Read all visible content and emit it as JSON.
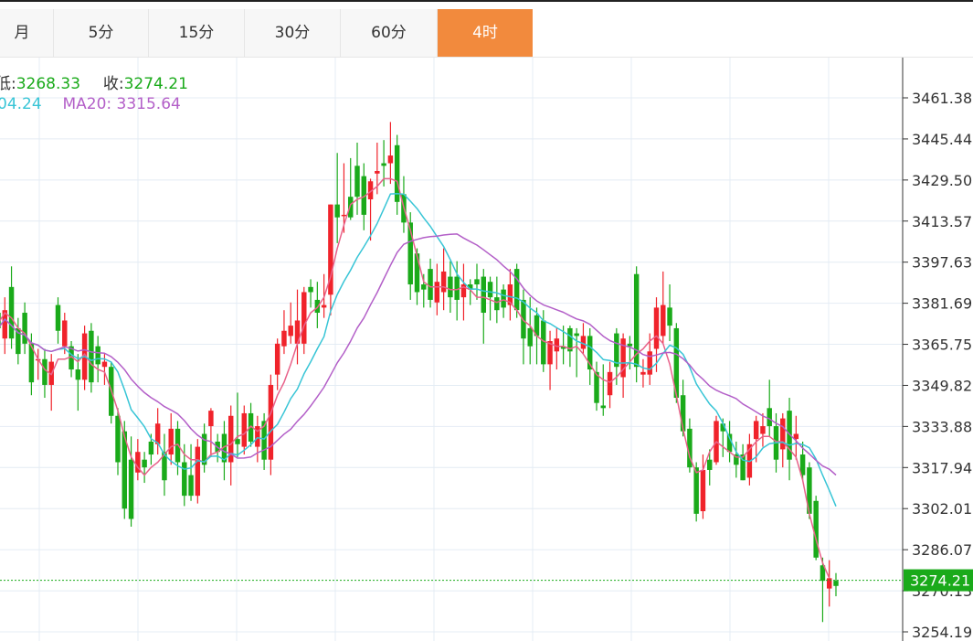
{
  "tabs": [
    {
      "label": "月"
    },
    {
      "label": "5分"
    },
    {
      "label": "15分"
    },
    {
      "label": "30分"
    },
    {
      "label": "60分"
    },
    {
      "label": "4时",
      "active": true
    }
  ],
  "info": {
    "low_label": "低:",
    "low_value": "3268.33",
    "close_label": "收:",
    "close_value": "3274.21",
    "ma10_value": "04.24",
    "ma20_label": "MA20:",
    "ma20_value": "3315.64"
  },
  "colors": {
    "up": "#f0232b",
    "down": "#1aaa1a",
    "ma5": "#e8628a",
    "ma10": "#38c5d6",
    "ma20": "#b35fc8",
    "accent": "#f28a3d",
    "price_tag": "#1aaa1a"
  },
  "chart_data": {
    "type": "candlestick",
    "y_ticks": [
      3461.38,
      3445.44,
      3429.5,
      3413.57,
      3397.63,
      3381.69,
      3365.75,
      3349.82,
      3333.88,
      3317.94,
      3302.01,
      3286.07,
      3270.13,
      3254.19
    ],
    "y_tick_labels": [
      "3461.38",
      "3445.44",
      "3429.50",
      "3413.57",
      "3397.63",
      "3381.69",
      "3365.75",
      "3349.82",
      "3333.88",
      "3317.94",
      "3302.01",
      "3286.07",
      "3270.13",
      "3254.19"
    ],
    "ylim": [
      3252,
      3475
    ],
    "last_price": 3274.21,
    "last_price_label": "3274.21",
    "candles": [
      [
        3378,
        3372,
        3381,
        3368
      ],
      [
        3368,
        3379,
        3384,
        3362
      ],
      [
        3388,
        3368,
        3396,
        3364
      ],
      [
        3372,
        3362,
        3376,
        3358
      ],
      [
        3378,
        3366,
        3382,
        3362
      ],
      [
        3366,
        3351,
        3370,
        3346
      ],
      [
        3360,
        3360,
        3364,
        3352
      ],
      [
        3360,
        3350,
        3364,
        3345
      ],
      [
        3350,
        3359,
        3362,
        3340
      ],
      [
        3381,
        3371,
        3384,
        3366
      ],
      [
        3365,
        3375,
        3378,
        3362
      ],
      [
        3365,
        3356,
        3367,
        3353
      ],
      [
        3356,
        3352,
        3362,
        3340
      ],
      [
        3352,
        3370,
        3373,
        3348
      ],
      [
        3371,
        3351,
        3374,
        3347
      ],
      [
        3365,
        3358,
        3369,
        3351
      ],
      [
        3357,
        3359,
        3362,
        3350
      ],
      [
        3357,
        3338,
        3359,
        3335
      ],
      [
        3338,
        3320,
        3341,
        3315
      ],
      [
        3332,
        3302,
        3336,
        3298
      ],
      [
        3321,
        3298,
        3330,
        3295
      ],
      [
        3316,
        3324,
        3329,
        3313
      ],
      [
        3321,
        3318,
        3324,
        3312
      ],
      [
        3328,
        3323,
        3331,
        3319
      ],
      [
        3327,
        3335,
        3341,
        3323
      ],
      [
        3324,
        3313,
        3331,
        3307
      ],
      [
        3323,
        3333,
        3339,
        3319
      ],
      [
        3333,
        3320,
        3336,
        3315
      ],
      [
        3320,
        3307,
        3327,
        3303
      ],
      [
        3315,
        3307,
        3327,
        3305
      ],
      [
        3307,
        3326,
        3329,
        3304
      ],
      [
        3331,
        3319,
        3335,
        3316
      ],
      [
        3334,
        3340,
        3341,
        3322
      ],
      [
        3328,
        3324,
        3331,
        3320
      ],
      [
        3331,
        3320,
        3336,
        3313
      ],
      [
        3320,
        3338,
        3342,
        3311
      ],
      [
        3329,
        3327,
        3347,
        3322
      ],
      [
        3326,
        3339,
        3342,
        3323
      ],
      [
        3339,
        3328,
        3343,
        3326
      ],
      [
        3326,
        3334,
        3338,
        3320
      ],
      [
        3336,
        3321,
        3339,
        3317
      ],
      [
        3321,
        3350,
        3354,
        3315
      ],
      [
        3354,
        3366,
        3368,
        3348
      ],
      [
        3365,
        3371,
        3379,
        3362
      ],
      [
        3369,
        3373,
        3382,
        3366
      ],
      [
        3366,
        3375,
        3387,
        3358
      ],
      [
        3366,
        3386,
        3388,
        3362
      ],
      [
        3388,
        3386,
        3391,
        3380
      ],
      [
        3383,
        3378,
        3390,
        3372
      ],
      [
        3380,
        3381,
        3393,
        3376
      ],
      [
        3385,
        3420,
        3420,
        3377
      ],
      [
        3420,
        3415,
        3440,
        3405
      ],
      [
        3416,
        3416,
        3436,
        3409
      ],
      [
        3423,
        3415,
        3438,
        3414
      ],
      [
        3435,
        3423,
        3444,
        3416
      ],
      [
        3431,
        3416,
        3436,
        3410
      ],
      [
        3422,
        3429,
        3430,
        3406
      ],
      [
        3432,
        3433,
        3444,
        3424
      ],
      [
        3436,
        3435,
        3445,
        3427
      ],
      [
        3436,
        3439,
        3452,
        3428
      ],
      [
        3443,
        3421,
        3447,
        3416
      ],
      [
        3424,
        3413,
        3431,
        3409
      ],
      [
        3413,
        3389,
        3417,
        3383
      ],
      [
        3401,
        3386,
        3403,
        3381
      ],
      [
        3389,
        3387,
        3393,
        3380
      ],
      [
        3395,
        3383,
        3399,
        3380
      ],
      [
        3382,
        3390,
        3397,
        3377
      ],
      [
        3386,
        3394,
        3403,
        3379
      ],
      [
        3392,
        3384,
        3398,
        3378
      ],
      [
        3392,
        3383,
        3398,
        3375
      ],
      [
        3384,
        3389,
        3397,
        3375
      ],
      [
        3389,
        3387,
        3391,
        3381
      ],
      [
        3391,
        3389,
        3397,
        3383
      ],
      [
        3392,
        3378,
        3395,
        3366
      ],
      [
        3390,
        3384,
        3392,
        3375
      ],
      [
        3384,
        3379,
        3392,
        3374
      ],
      [
        3387,
        3380,
        3389,
        3376
      ],
      [
        3381,
        3389,
        3395,
        3375
      ],
      [
        3395,
        3379,
        3397,
        3376
      ],
      [
        3383,
        3368,
        3387,
        3358
      ],
      [
        3372,
        3365,
        3384,
        3358
      ],
      [
        3377,
        3369,
        3380,
        3358
      ],
      [
        3375,
        3358,
        3379,
        3355
      ],
      [
        3358,
        3367,
        3371,
        3348
      ],
      [
        3363,
        3368,
        3372,
        3356
      ],
      [
        3365,
        3364,
        3373,
        3358
      ],
      [
        3372,
        3363,
        3373,
        3357
      ],
      [
        3370,
        3369,
        3372,
        3353
      ],
      [
        3364,
        3369,
        3374,
        3362
      ],
      [
        3369,
        3356,
        3372,
        3350
      ],
      [
        3355,
        3343,
        3359,
        3340
      ],
      [
        3342,
        3341,
        3358,
        3338
      ],
      [
        3346,
        3355,
        3359,
        3341
      ],
      [
        3370,
        3357,
        3372,
        3350
      ],
      [
        3353,
        3368,
        3370,
        3345
      ],
      [
        3366,
        3365,
        3369,
        3356
      ],
      [
        3393,
        3357,
        3396,
        3351
      ],
      [
        3354,
        3355,
        3360,
        3349
      ],
      [
        3354,
        3363,
        3370,
        3350
      ],
      [
        3364,
        3380,
        3384,
        3355
      ],
      [
        3369,
        3381,
        3394,
        3366
      ],
      [
        3380,
        3373,
        3389,
        3367
      ],
      [
        3372,
        3345,
        3374,
        3343
      ],
      [
        3346,
        3332,
        3352,
        3330
      ],
      [
        3333,
        3318,
        3337,
        3316
      ],
      [
        3318,
        3300,
        3320,
        3297
      ],
      [
        3301,
        3317,
        3323,
        3298
      ],
      [
        3321,
        3317,
        3325,
        3311
      ],
      [
        3320,
        3336,
        3338,
        3319
      ],
      [
        3335,
        3332,
        3337,
        3322
      ],
      [
        3331,
        3324,
        3336,
        3320
      ],
      [
        3323,
        3319,
        3328,
        3314
      ],
      [
        3323,
        3313,
        3327,
        3313
      ],
      [
        3314,
        3327,
        3331,
        3311
      ],
      [
        3329,
        3336,
        3338,
        3320
      ],
      [
        3331,
        3334,
        3339,
        3326
      ],
      [
        3341,
        3334,
        3352,
        3330
      ],
      [
        3334,
        3321,
        3339,
        3316
      ],
      [
        3325,
        3337,
        3339,
        3318
      ],
      [
        3340,
        3321,
        3345,
        3313
      ],
      [
        3329,
        3331,
        3338,
        3321
      ],
      [
        3323,
        3315,
        3328,
        3313
      ],
      [
        3318,
        3300,
        3320,
        3298
      ],
      [
        3305,
        3283,
        3307,
        3282
      ],
      [
        3280,
        3274,
        3283,
        3258
      ],
      [
        3271,
        3275,
        3282,
        3264
      ],
      [
        3274,
        3272,
        3277,
        3268
      ]
    ],
    "ma5": [
      3374,
      3378,
      3376,
      3372,
      3370,
      3365,
      3360,
      3356,
      3354,
      3360,
      3360,
      3361,
      3359,
      3362,
      3358,
      3356,
      3355,
      3348,
      3340,
      3330,
      3322,
      3318,
      3315,
      3318,
      3320,
      3323,
      3326,
      3327,
      3323,
      3321,
      3321,
      3320,
      3323,
      3324,
      3326,
      3327,
      3330,
      3331,
      3334,
      3332,
      3334,
      3339,
      3346,
      3351,
      3358,
      3366,
      3373,
      3378,
      3380,
      3384,
      3392,
      3403,
      3412,
      3420,
      3422,
      3423,
      3425,
      3427,
      3430,
      3430,
      3429,
      3419,
      3410,
      3400,
      3390,
      3388,
      3388,
      3388,
      3387,
      3387,
      3388,
      3387,
      3384,
      3384,
      3383,
      3382,
      3383,
      3382,
      3379,
      3375,
      3373,
      3369,
      3367,
      3366,
      3365,
      3365,
      3364,
      3365,
      3362,
      3358,
      3354,
      3352,
      3351,
      3353,
      3356,
      3359,
      3362,
      3364,
      3367,
      3369,
      3366,
      3358,
      3346,
      3333,
      3322,
      3316,
      3317,
      3324,
      3328,
      3326,
      3324,
      3322,
      3322,
      3325,
      3328,
      3330,
      3330,
      3328,
      3328,
      3325,
      3322,
      3313,
      3300,
      3290,
      3281,
      3275
    ]
  }
}
